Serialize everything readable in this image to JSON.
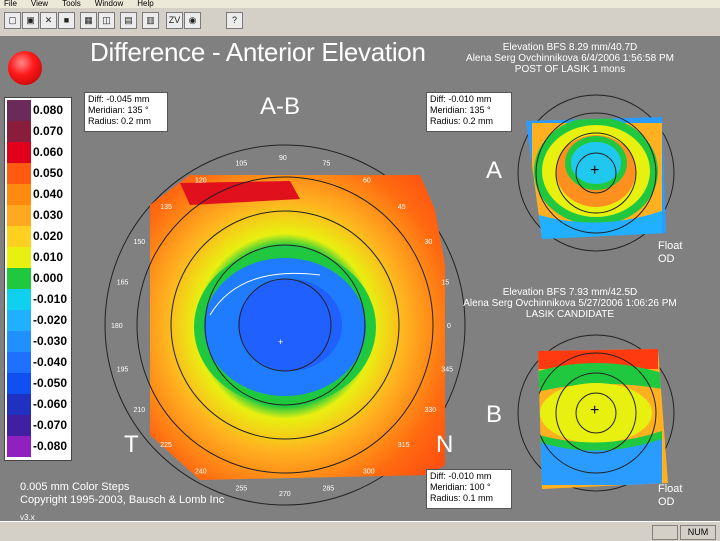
{
  "menu": [
    "File",
    "View",
    "Tools",
    "Window",
    "Help"
  ],
  "toolbar": {
    "buttons": [
      {
        "name": "new-icon",
        "glyph": "▢"
      },
      {
        "name": "save-icon",
        "glyph": "▣"
      },
      {
        "name": "close-icon",
        "glyph": "✕"
      },
      {
        "name": "stop-icon",
        "glyph": "■"
      },
      {
        "name": "grid-icon",
        "glyph": "▦"
      },
      {
        "name": "map-icon",
        "glyph": "◫"
      },
      {
        "name": "layer-icon",
        "glyph": "▤"
      },
      {
        "name": "panel-icon",
        "glyph": "▥"
      },
      {
        "name": "zoom-icon",
        "glyph": "ZV"
      },
      {
        "name": "eye-icon",
        "glyph": "◉"
      },
      {
        "name": "help-icon",
        "glyph": "?"
      }
    ]
  },
  "title": "Difference - Anterior Elevation",
  "info_a": [
    "Elevation BFS 8.29 mm/40.7D",
    "Alena Serg Ovchinnikova 6/4/2006 1:56:58 PM",
    "POST OF LASIK 1 mons"
  ],
  "info_b": [
    "Elevation BFS 7.93 mm/42.5D",
    "Alena Serg Ovchinnikova 5/27/2006 1:06:26 PM",
    "LASIK CANDIDATE"
  ],
  "box_main_left": {
    "diff": "Diff:  -0.045 mm",
    "meridian": "Meridian:  135 °",
    "radius": "Radius:  0.2 mm"
  },
  "box_main_right": {
    "diff": "Diff:  -0.010 mm",
    "meridian": "Meridian:  135 °",
    "radius": "Radius:  0.2 mm"
  },
  "box_bottom": {
    "diff": "Diff:  -0.010 mm",
    "meridian": "Meridian:  100 °",
    "radius": "Radius:  0.1 mm"
  },
  "labels": {
    "ab": "A-B",
    "a": "A",
    "b": "B",
    "t": "T",
    "n": "N"
  },
  "float_a": [
    "Float",
    "OD"
  ],
  "float_b": [
    "Float",
    "OD"
  ],
  "footer": [
    "0.005 mm Color Steps",
    "Copyright 1995-2003, Bausch & Lomb Inc"
  ],
  "version": "v3.x",
  "status": {
    "num": "NUM"
  },
  "scale": [
    {
      "value": "0.080",
      "color": "#6a2a5a"
    },
    {
      "value": "0.070",
      "color": "#8a1c3c"
    },
    {
      "value": "0.060",
      "color": "#e0001c"
    },
    {
      "value": "0.050",
      "color": "#ff5a10"
    },
    {
      "value": "0.040",
      "color": "#ff8a10"
    },
    {
      "value": "0.030",
      "color": "#ffa820"
    },
    {
      "value": "0.020",
      "color": "#ffd020"
    },
    {
      "value": "0.010",
      "color": "#e8f010"
    },
    {
      "value": "0.000",
      "color": "#20c840"
    },
    {
      "value": "-0.010",
      "color": "#10d0f0"
    },
    {
      "value": "-0.020",
      "color": "#20b0ff"
    },
    {
      "value": "-0.030",
      "color": "#2090ff"
    },
    {
      "value": "-0.040",
      "color": "#2070ff"
    },
    {
      "value": "-0.050",
      "color": "#1050f0"
    },
    {
      "value": "-0.060",
      "color": "#2030c0"
    },
    {
      "value": "-0.070",
      "color": "#4020a0"
    },
    {
      "value": "-0.080",
      "color": "#9020c0"
    }
  ],
  "meridian_ticks": [
    "0",
    "15",
    "30",
    "45",
    "60",
    "75",
    "90",
    "105",
    "120",
    "135",
    "150",
    "165",
    "180",
    "195",
    "210",
    "225",
    "240",
    "255",
    "270",
    "285",
    "300",
    "315",
    "330",
    "345"
  ]
}
